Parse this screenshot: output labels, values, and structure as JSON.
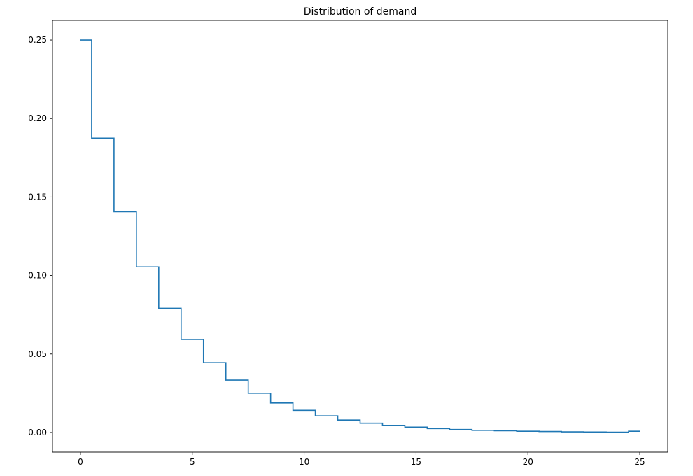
{
  "chart_data": {
    "type": "line",
    "drawstyle": "steps-mid",
    "title": "Distribution of demand",
    "xlabel": "",
    "ylabel": "",
    "xlim": [
      -1.25,
      26.25
    ],
    "ylim": [
      -0.0125,
      0.2625
    ],
    "x_ticks": [
      0,
      5,
      10,
      15,
      20,
      25
    ],
    "x_tick_labels": [
      "0",
      "5",
      "10",
      "15",
      "20",
      "25"
    ],
    "y_ticks": [
      0.0,
      0.05,
      0.1,
      0.15,
      0.2,
      0.25
    ],
    "y_tick_labels": [
      "0.00",
      "0.05",
      "0.10",
      "0.15",
      "0.20",
      "0.25"
    ],
    "grid": false,
    "legend": "none",
    "line_color": "#1f77b4",
    "series": [
      {
        "x": [
          0,
          1,
          2,
          3,
          4,
          5,
          6,
          7,
          8,
          9,
          10,
          11,
          12,
          13,
          14,
          15,
          16,
          17,
          18,
          19,
          20,
          21,
          22,
          23,
          24,
          25
        ],
        "values": [
          0.25,
          0.1875,
          0.1406,
          0.1055,
          0.0791,
          0.0593,
          0.0445,
          0.0334,
          0.025,
          0.0188,
          0.0141,
          0.0106,
          0.0079,
          0.0059,
          0.0045,
          0.0034,
          0.0025,
          0.0019,
          0.0014,
          0.0011,
          0.0008,
          0.0006,
          0.0004,
          0.0003,
          0.0002,
          0.0008
        ]
      }
    ]
  }
}
